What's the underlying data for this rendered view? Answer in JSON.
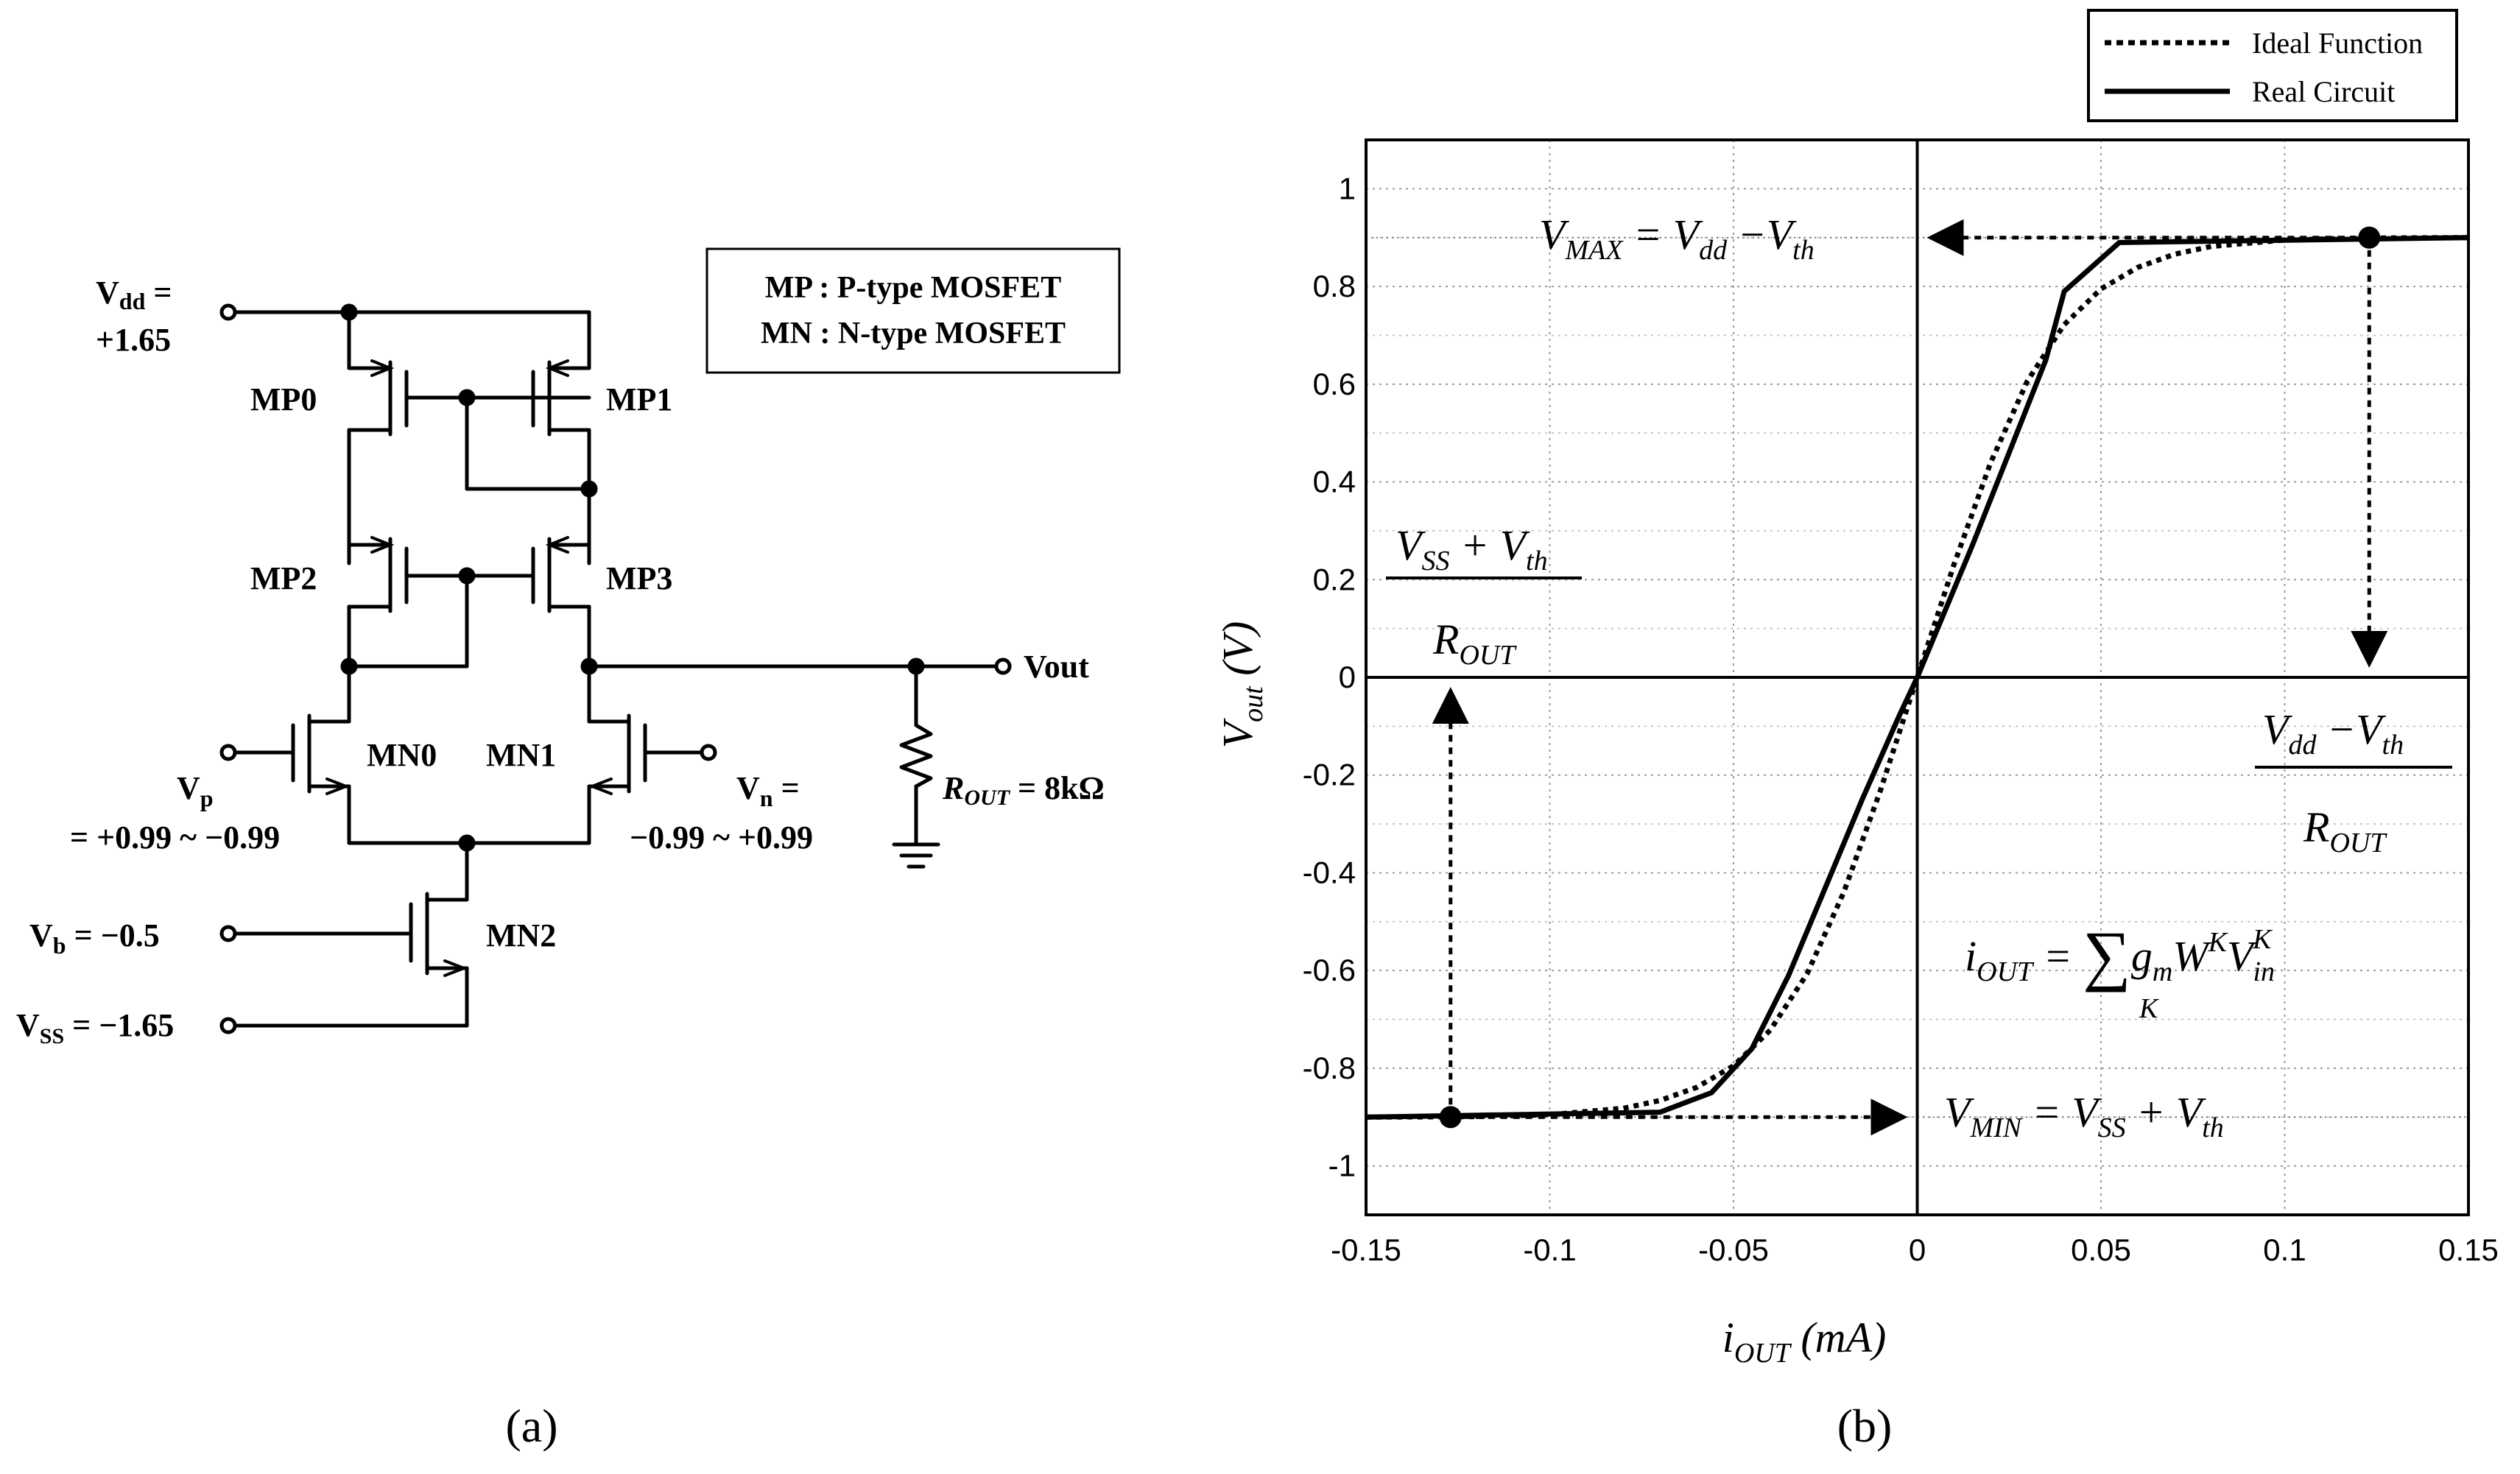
{
  "figure": {
    "panel_a_caption": "(a)",
    "panel_b_caption": "(b)"
  },
  "circuit": {
    "legend_line1": "MP : P-type MOSFET",
    "legend_line2": "MN : N-type MOSFET",
    "vdd_label": "V",
    "vdd_sub": "dd",
    "vdd_eq": " =",
    "vdd_value": "+1.65",
    "vp_label": "V",
    "vp_sub": "p",
    "vp_value": "= +0.99 ~ −0.99",
    "vn_label": "V",
    "vn_sub": "n",
    "vn_eq": " =",
    "vn_value": "−0.99 ~ +0.99",
    "vb_label": "V",
    "vb_sub": "b",
    "vb_value": " = −0.5",
    "vss_label": "V",
    "vss_sub": "SS",
    "vss_value": " = −1.65",
    "vout_label": "Vout",
    "rout_label": "R",
    "rout_sub": "OUT",
    "rout_value": " = 8kΩ",
    "transistors": [
      "MP0",
      "MP1",
      "MP2",
      "MP3",
      "MN0",
      "MN1",
      "MN2"
    ]
  },
  "chart_data": {
    "type": "line",
    "xlabel": "i",
    "xlabel_sub": "OUT",
    "xlabel_unit": " (mA)",
    "ylabel": "V",
    "ylabel_sub": "out",
    "ylabel_unit": " (V)",
    "xlim": [
      -0.15,
      0.15
    ],
    "ylim": [
      -1.1,
      1.1
    ],
    "grid": true,
    "legend_position": "top-right",
    "x_ticks": [
      -0.15,
      -0.1,
      -0.05,
      0,
      0.05,
      0.1,
      0.15
    ],
    "x_tick_labels": [
      "-0.15",
      "-0.1",
      "-0.05",
      "0",
      "0.05",
      "0.1",
      "0.15"
    ],
    "y_ticks": [
      -1,
      -0.8,
      -0.6,
      -0.4,
      -0.2,
      0,
      0.2,
      0.4,
      0.6,
      0.8,
      1
    ],
    "y_tick_labels": [
      "-1",
      "-0.8",
      "-0.6",
      "-0.4",
      "-0.2",
      "0",
      "0.2",
      "0.4",
      "0.6",
      "0.8",
      "1"
    ],
    "series": [
      {
        "name": "Ideal Function",
        "style": "dotted",
        "color": "#000000",
        "x": [
          -0.15,
          -0.12,
          -0.1,
          -0.08,
          -0.07,
          -0.06,
          -0.05,
          -0.04,
          -0.03,
          -0.02,
          -0.01,
          0,
          0.01,
          0.02,
          0.03,
          0.04,
          0.05,
          0.06,
          0.07,
          0.08,
          0.1,
          0.12,
          0.15
        ],
        "y": [
          -0.9,
          -0.899,
          -0.895,
          -0.882,
          -0.866,
          -0.839,
          -0.795,
          -0.722,
          -0.607,
          -0.44,
          -0.231,
          0,
          0.231,
          0.44,
          0.607,
          0.722,
          0.795,
          0.839,
          0.866,
          0.882,
          0.895,
          0.899,
          0.9
        ]
      },
      {
        "name": "Real Circuit",
        "style": "solid",
        "color": "#000000",
        "x": [
          -0.15,
          -0.07,
          -0.056,
          -0.045,
          -0.035,
          -0.025,
          -0.015,
          -0.005,
          0,
          0.005,
          0.015,
          0.025,
          0.035,
          0.04,
          0.055,
          0.15
        ],
        "y": [
          -0.9,
          -0.89,
          -0.85,
          -0.76,
          -0.61,
          -0.43,
          -0.25,
          -0.08,
          0,
          0.09,
          0.27,
          0.46,
          0.65,
          0.79,
          0.89,
          0.9
        ]
      }
    ],
    "markers": [
      {
        "name": "vmax-point",
        "x": 0.123,
        "y": 0.9
      },
      {
        "name": "vmin-point",
        "x": -0.127,
        "y": -0.9
      }
    ],
    "reference_lines": [
      {
        "name": "vmax-level",
        "y": 0.9
      },
      {
        "name": "vmin-level",
        "y": -0.9
      }
    ],
    "annotations": {
      "vmax": {
        "v": "V",
        "sub1": "MAX",
        "eq": " = V",
        "sub2": "dd",
        "minus": " −V",
        "sub3": "th"
      },
      "vmin": {
        "v": "V",
        "sub1": "MIN",
        "eq": " = V",
        "sub2": "SS",
        "plus": " + V",
        "sub3": "th"
      },
      "iout_pos": {
        "num_v": "V",
        "num_sub1": "dd",
        "num_op": " −V",
        "num_sub2": "th",
        "den_r": "R",
        "den_sub": "OUT"
      },
      "iout_neg": {
        "num_v": "V",
        "num_sub1": "SS",
        "num_op": " + V",
        "num_sub2": "th",
        "den_r": "R",
        "den_sub": "OUT"
      },
      "formula": {
        "lhs": "i",
        "lhs_sub": "OUT",
        "eq": " = ",
        "sigma": "∑",
        "sigma_sub": "K",
        "g": "g",
        "g_sub": "m",
        "w": "W",
        "w_sup": "K",
        "v": "V",
        "v_sub": "in",
        "v_sup": "K"
      }
    }
  }
}
